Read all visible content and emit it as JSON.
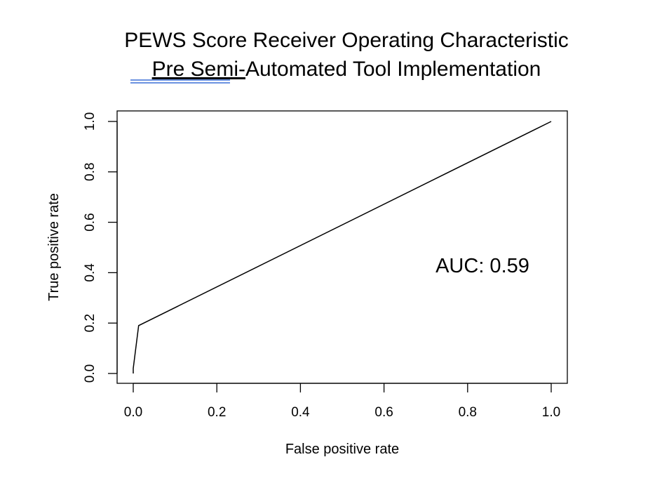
{
  "chart_data": {
    "type": "line",
    "title": "PEWS Score Receiver Operating Characteristic",
    "subtitle_underlined": "Pre Semi-",
    "subtitle_rest": "Automated Tool Implementation",
    "xlabel": "False positive rate",
    "ylabel": "True positive rate",
    "xlim": [
      0,
      1
    ],
    "ylim": [
      0,
      1
    ],
    "xticks": [
      "0.0",
      "0.2",
      "0.4",
      "0.6",
      "0.8",
      "1.0"
    ],
    "yticks": [
      "0.0",
      "0.2",
      "0.4",
      "0.6",
      "0.8",
      "1.0"
    ],
    "grid": false,
    "series": [
      {
        "x": [
          0.0,
          0.0,
          0.013,
          1.0
        ],
        "y": [
          0.0,
          0.02,
          0.19,
          1.0
        ]
      }
    ],
    "annotation": "AUC: 0.59"
  }
}
